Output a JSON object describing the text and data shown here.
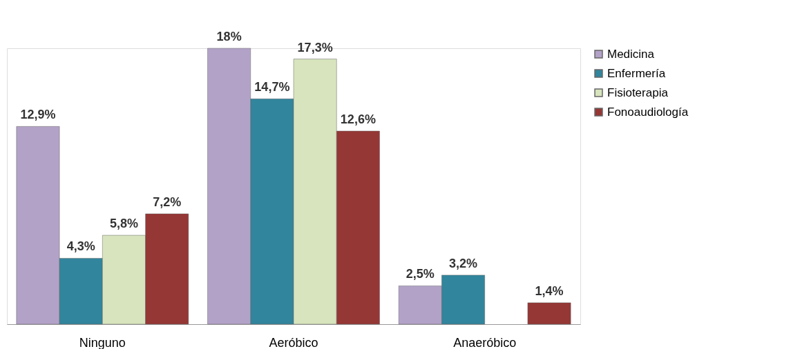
{
  "chart_data": {
    "type": "bar",
    "categories": [
      "Ninguno",
      "Aeróbico",
      "Anaeróbico"
    ],
    "series": [
      {
        "name": "Medicina",
        "color": "#b3a2c7",
        "values": [
          12.9,
          18,
          2.5
        ],
        "value_labels": [
          "12,9%",
          "18%",
          "2,5%"
        ]
      },
      {
        "name": "Enfermería",
        "color": "#31859c",
        "values": [
          4.3,
          14.7,
          3.2
        ],
        "value_labels": [
          "4,3%",
          "14,7%",
          "3,2%"
        ]
      },
      {
        "name": "Fisioterapia",
        "color": "#d7e4bd",
        "values": [
          5.8,
          17.3,
          null
        ],
        "value_labels": [
          "5,8%",
          "17,3%",
          null
        ]
      },
      {
        "name": "Fonoaudiología",
        "color": "#953735",
        "values": [
          7.2,
          12.6,
          1.4
        ],
        "value_labels": [
          "7,2%",
          "12,6%",
          "1,4%"
        ]
      }
    ],
    "legend": "right",
    "grid": false
  }
}
